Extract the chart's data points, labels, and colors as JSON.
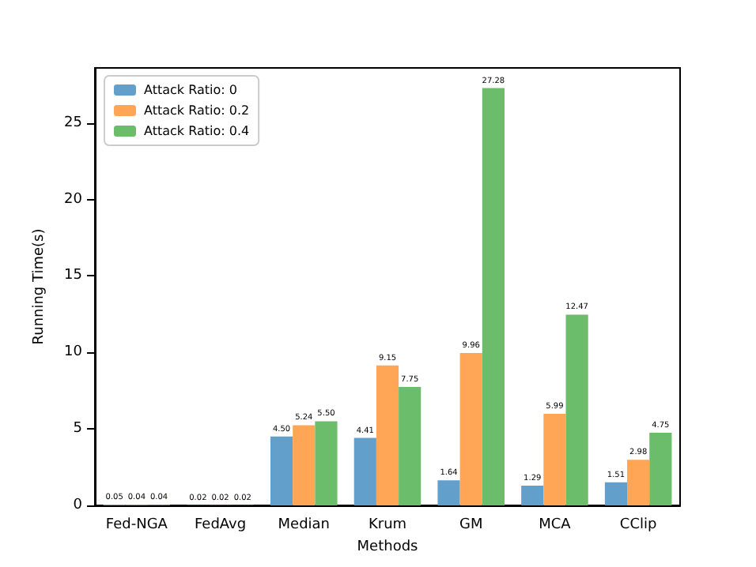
{
  "chart_data": {
    "type": "bar",
    "xlabel": "Methods",
    "ylabel": "Running Time(s)",
    "categories": [
      "Fed-NGA",
      "FedAvg",
      "Median",
      "Krum",
      "GM",
      "MCA",
      "CClip"
    ],
    "series": [
      {
        "name": "Attack Ratio: 0",
        "color": "#62a0cb",
        "values": [
          0.05,
          0.02,
          4.5,
          4.41,
          1.64,
          1.29,
          1.51
        ],
        "value_labels": [
          "0.05",
          "0.02",
          "4.50",
          "4.41",
          "1.64",
          "1.29",
          "1.51"
        ]
      },
      {
        "name": "Attack Ratio: 0.2",
        "color": "#ffa556",
        "values": [
          0.04,
          0.02,
          5.24,
          9.15,
          9.96,
          5.99,
          2.98
        ],
        "value_labels": [
          "0.04",
          "0.02",
          "5.24",
          "9.15",
          "9.96",
          "5.99",
          "2.98"
        ]
      },
      {
        "name": "Attack Ratio: 0.4",
        "color": "#6bbc6b",
        "values": [
          0.04,
          0.02,
          5.5,
          7.75,
          27.28,
          12.47,
          4.75
        ],
        "value_labels": [
          "0.04",
          "0.02",
          "5.50",
          "7.75",
          "27.28",
          "12.47",
          "4.75"
        ]
      }
    ],
    "ylim": [
      0,
      28.6
    ],
    "yticks": [
      0,
      5,
      10,
      15,
      20,
      25
    ],
    "grid": false,
    "legend": "top left"
  }
}
